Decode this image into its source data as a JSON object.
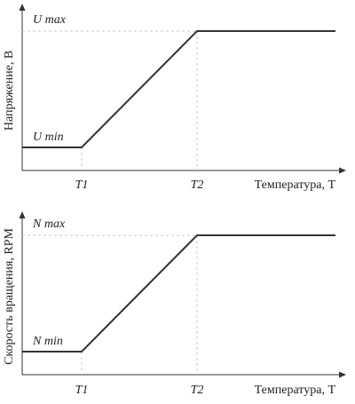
{
  "chart_data": [
    {
      "type": "line",
      "ylabel": "Напряжение, В",
      "xlabel": "Температура, Т",
      "x_ticks": [
        "T1",
        "T2"
      ],
      "y_levels": [
        "U min",
        "U max"
      ],
      "points": [
        [
          "start",
          "min"
        ],
        [
          "T1",
          "min"
        ],
        [
          "T2",
          "max"
        ],
        [
          "end",
          "max"
        ]
      ],
      "grid": false,
      "colors": {
        "line": "#333333",
        "axis": "#333333",
        "guide": "#c8c8c8"
      }
    },
    {
      "type": "line",
      "ylabel": "Скорость вращения, RPM",
      "xlabel": "Температура, Т",
      "x_ticks": [
        "T1",
        "T2"
      ],
      "y_levels": [
        "N min",
        "N max"
      ],
      "points": [
        [
          "start",
          "min"
        ],
        [
          "T1",
          "min"
        ],
        [
          "T2",
          "max"
        ],
        [
          "end",
          "max"
        ]
      ],
      "grid": false,
      "colors": {
        "line": "#333333",
        "axis": "#333333",
        "guide": "#c8c8c8"
      }
    }
  ]
}
